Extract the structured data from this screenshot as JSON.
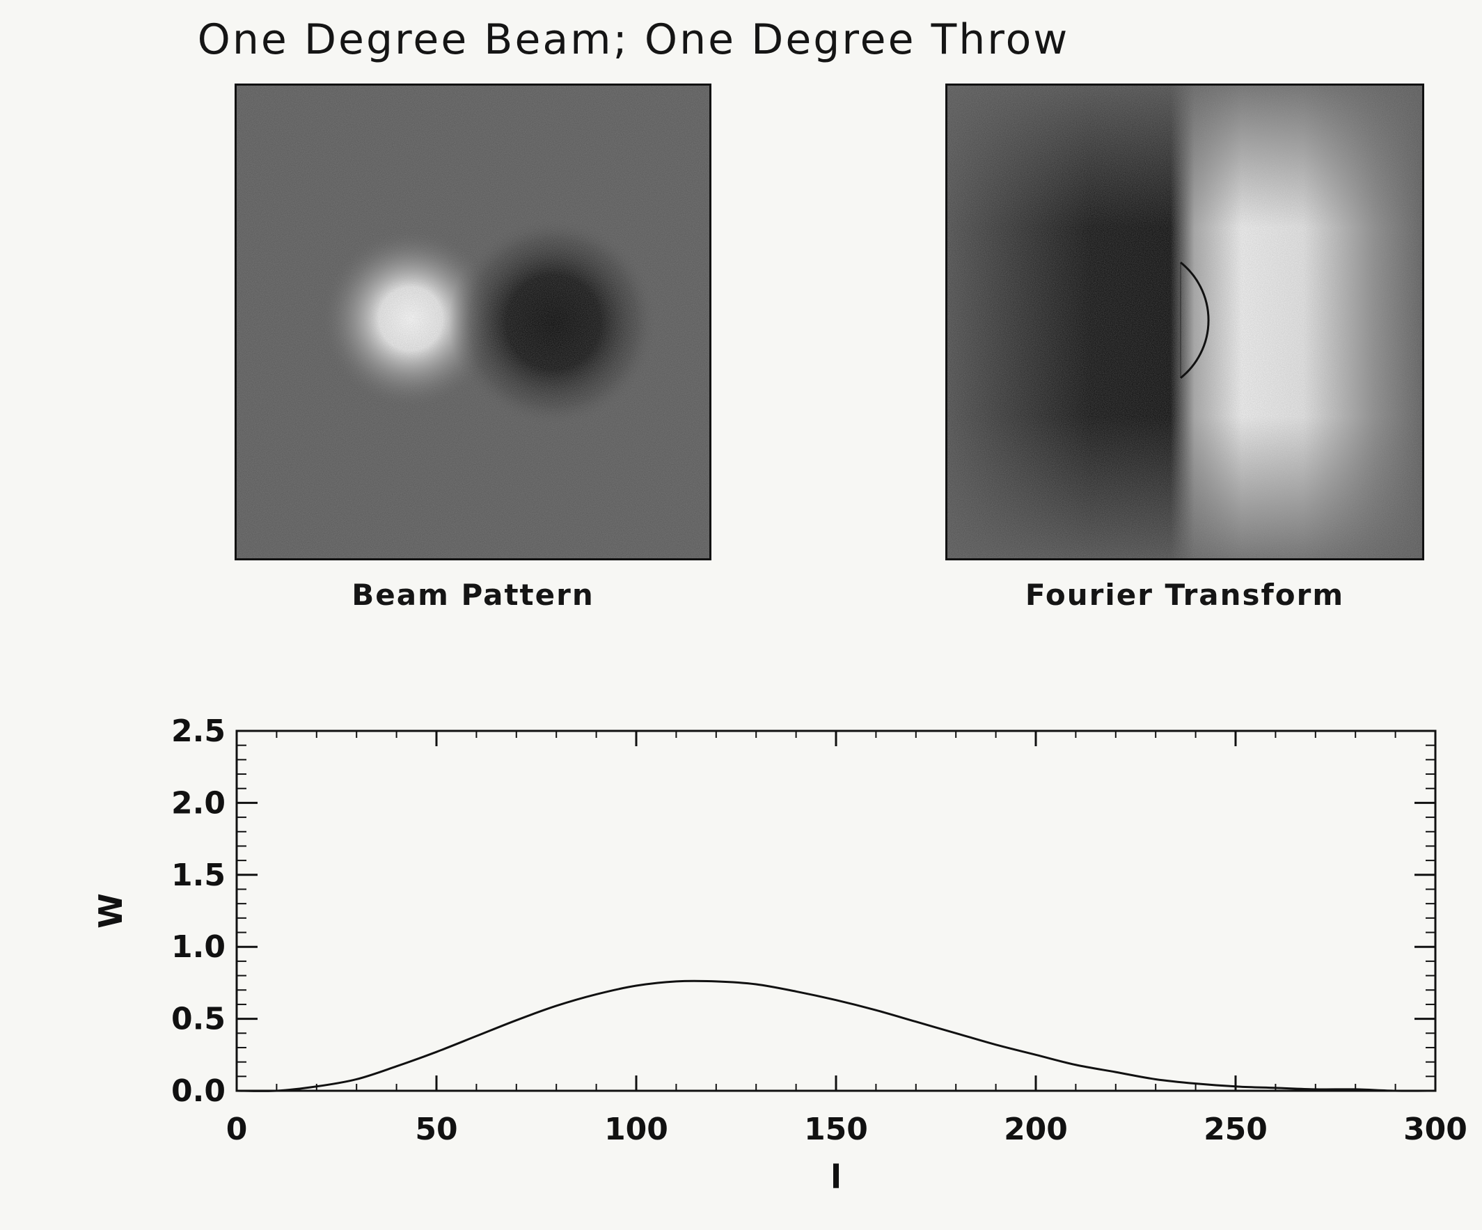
{
  "title": "One Degree Beam; One Degree Throw",
  "panels": {
    "beam_caption": "Beam Pattern",
    "fourier_caption": "Fourier Transform"
  },
  "colors": {
    "ink": "#111111",
    "paper": "#f7f7f4",
    "image_gray": "#575757"
  },
  "chart_data": {
    "type": "line",
    "title": "",
    "xlabel": "l",
    "ylabel": "W",
    "xlim": [
      0,
      300
    ],
    "ylim": [
      0,
      2.5
    ],
    "xticks": [
      0,
      50,
      100,
      150,
      200,
      250,
      300
    ],
    "xtick_labels": [
      "0",
      "50",
      "100",
      "150",
      "200",
      "250",
      "300"
    ],
    "yticks": [
      0.0,
      0.5,
      1.0,
      1.5,
      2.0,
      2.5
    ],
    "ytick_labels": [
      "0.0",
      "0.5",
      "1.0",
      "1.5",
      "2.0",
      "2.5"
    ],
    "grid": false,
    "x": [
      0,
      10,
      20,
      30,
      40,
      50,
      60,
      70,
      80,
      90,
      100,
      110,
      120,
      130,
      140,
      150,
      160,
      170,
      180,
      190,
      200,
      210,
      220,
      230,
      240,
      250,
      260,
      270,
      280,
      290,
      300
    ],
    "y": [
      0.0,
      0.0,
      0.03,
      0.08,
      0.17,
      0.27,
      0.38,
      0.49,
      0.59,
      0.67,
      0.73,
      0.76,
      0.76,
      0.74,
      0.69,
      0.63,
      0.56,
      0.48,
      0.4,
      0.32,
      0.25,
      0.18,
      0.13,
      0.08,
      0.05,
      0.03,
      0.02,
      0.01,
      0.01,
      0.0,
      0.0
    ]
  }
}
